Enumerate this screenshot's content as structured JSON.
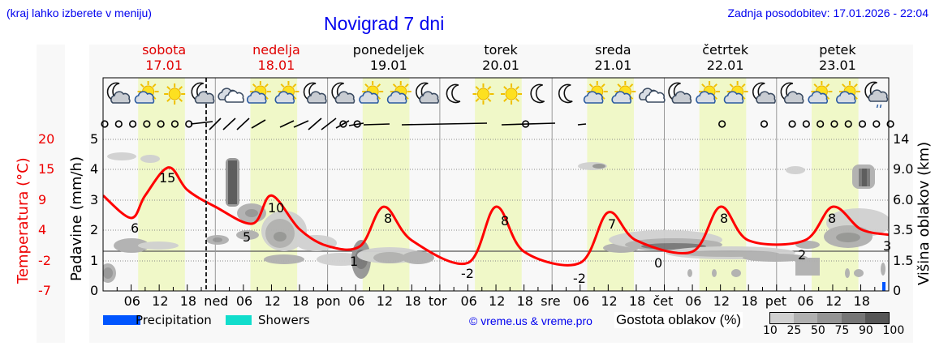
{
  "header": {
    "menu_hint": "(kraj lahko izberete v meniju)",
    "title": "Novigrad 7 dni",
    "last_update": "Zadnja posodobitev: 17.01.2026 - 22:04"
  },
  "days": [
    {
      "name": "sobota",
      "date": "17.01",
      "weekend": true
    },
    {
      "name": "nedelja",
      "date": "18.01",
      "weekend": true
    },
    {
      "name": "ponedeljek",
      "date": "19.01",
      "weekend": false
    },
    {
      "name": "torek",
      "date": "20.01",
      "weekend": false
    },
    {
      "name": "sreda",
      "date": "21.01",
      "weekend": false
    },
    {
      "name": "četrtek",
      "date": "22.01",
      "weekend": false
    },
    {
      "name": "petek",
      "date": "23.01",
      "weekend": false
    }
  ],
  "weather_icons": [
    "moon-cloud",
    "sun-cloud",
    "sun",
    "moon-cloud",
    "cloud",
    "sun-cloud",
    "sun-cloud",
    "moon-cloud",
    "moon-cloud",
    "sun-cloud",
    "sun-cloud",
    "moon-cloud",
    "moon",
    "sun",
    "sun",
    "moon",
    "moon",
    "sun-cloud",
    "sun-cloud",
    "cloud",
    "moon-cloud",
    "sun-cloud",
    "sun-cloud",
    "moon-cloud",
    "moon-cloud",
    "sun-cloud",
    "sun-cloud",
    "moon-cloud-rain"
  ],
  "x_axis": {
    "labels": [
      "06",
      "12",
      "18",
      "ned",
      "06",
      "12",
      "18",
      "pon",
      "06",
      "12",
      "18",
      "tor",
      "06",
      "12",
      "18",
      "sre",
      "06",
      "12",
      "18",
      "čet",
      "06",
      "12",
      "18",
      "pet",
      "06",
      "12",
      "18"
    ]
  },
  "axes": {
    "left_temp_title": "Temperatura (°C)",
    "left_temp_ticks": [
      "20",
      "15",
      "9",
      "4",
      "-2",
      "-7"
    ],
    "left_precip_title": "Padavine (mm/h)",
    "left_precip_ticks": [
      "5",
      "4",
      "3",
      "2",
      "1",
      "0"
    ],
    "right_cloud_title": "Višina oblakov (km)",
    "right_cloud_ticks": [
      "14",
      "9.0",
      "6.0",
      "3.5",
      "1.5",
      "0"
    ]
  },
  "legend": {
    "precipitation_label": "Precipitation",
    "precipitation_color": "#0055ff",
    "showers_label": "Showers",
    "showers_color": "#11ddcc",
    "copyright": "© vreme.us & vreme.pro",
    "cloud_density_title": "Gostota oblakov (%)",
    "cloud_density_ticks": [
      "10",
      "25",
      "50",
      "75",
      "90",
      "100"
    ],
    "cloud_density_colors": [
      "#d0d0d0",
      "#b0b0b0",
      "#949494",
      "#767676",
      "#565656"
    ]
  },
  "colors": {
    "temperature_line": "#ff0000",
    "daylight_band": "#f0f8c8",
    "weekend_text": "#e00000",
    "link_blue": "#0000ee"
  },
  "chart_data": {
    "type": "line",
    "title": "Novigrad 7 dni",
    "xlabel": "",
    "ylabel": "Temperatura (°C)",
    "ylim": [
      -7,
      20
    ],
    "x": [
      "Sat 00",
      "Sat 06",
      "Sat 09",
      "Sat 14",
      "Sat 18",
      "Sun 00",
      "Sun 08",
      "Sun 12",
      "Sun 18",
      "Mon 00",
      "Mon 07",
      "Mon 12",
      "Mon 18",
      "Tue 06",
      "Tue 12",
      "Tue 18",
      "Wed 06",
      "Wed 12",
      "Wed 18",
      "Thu 06",
      "Thu 12",
      "Thu 18",
      "Fri 06",
      "Fri 12",
      "Fri 18",
      "Fri 24"
    ],
    "series": [
      {
        "name": "Temperatura",
        "values": [
          10,
          6,
          10,
          15,
          11,
          8,
          5,
          10,
          4,
          1,
          1,
          8,
          2,
          -2,
          8,
          0,
          -2,
          7,
          2,
          0,
          8,
          2,
          2,
          8,
          4,
          3
        ]
      }
    ],
    "extremes_labels": [
      {
        "label": "6",
        "x": "Sat 06"
      },
      {
        "label": "15",
        "x": "Sat 14"
      },
      {
        "label": "5",
        "x": "Sun 09"
      },
      {
        "label": "10",
        "x": "Sun 13"
      },
      {
        "label": "1",
        "x": "Mon 07"
      },
      {
        "label": "8",
        "x": "Mon 14"
      },
      {
        "label": "-2",
        "x": "Tue 06"
      },
      {
        "label": "8",
        "x": "Tue 14"
      },
      {
        "label": "-2",
        "x": "Wed 06"
      },
      {
        "label": "7",
        "x": "Wed 13"
      },
      {
        "label": "0",
        "x": "Thu 03"
      },
      {
        "label": "8",
        "x": "Thu 14"
      },
      {
        "label": "2",
        "x": "Fri 04"
      },
      {
        "label": "8",
        "x": "Fri 13"
      },
      {
        "label": "3",
        "x": "Fri 24"
      }
    ],
    "precipitation_mm_h": {
      "Fri 23": 0.3
    },
    "secondary_axes": {
      "precip_ylim": [
        0,
        5
      ],
      "cloud_height_km_ticks": [
        0,
        1.5,
        3.5,
        6.0,
        9.0,
        14
      ]
    },
    "legend": [
      "Precipitation",
      "Showers",
      "Gostota oblakov (%)"
    ],
    "grid": true
  }
}
